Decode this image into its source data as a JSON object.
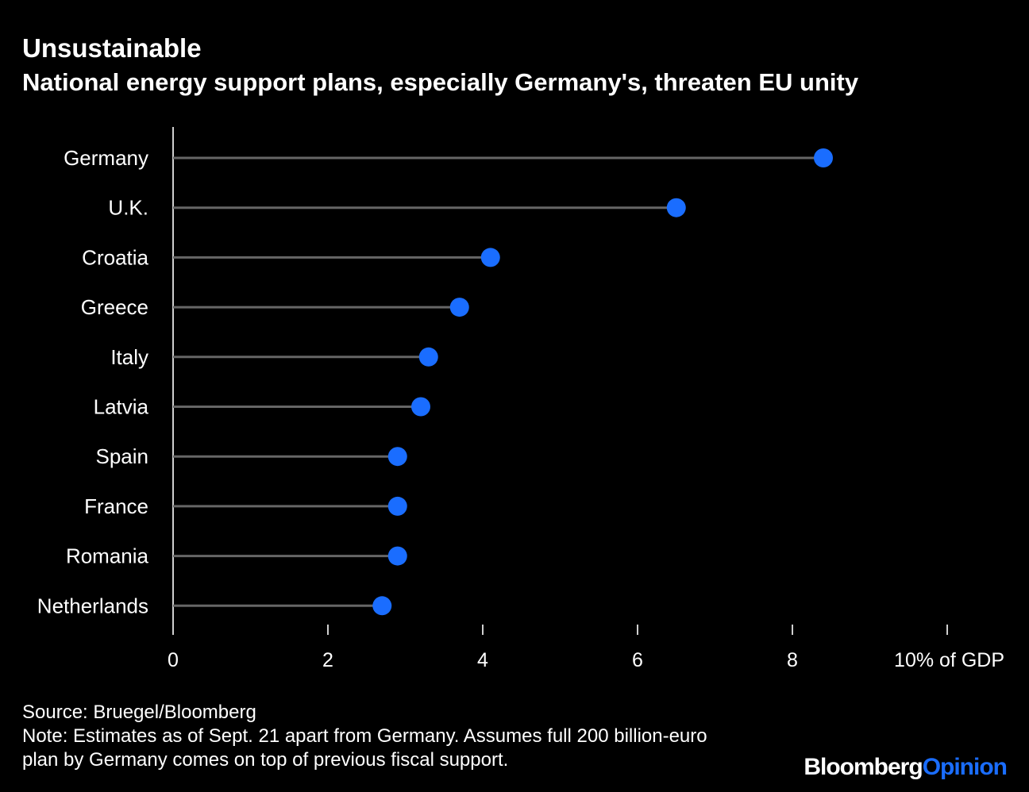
{
  "header": {
    "title": "Unsustainable",
    "subtitle": "National energy support plans, especially Germany's, threaten EU unity"
  },
  "chart_data": {
    "type": "scatter",
    "style": "dot-plot",
    "title": "Unsustainable",
    "subtitle": "National energy support plans, especially Germany's, threaten EU unity",
    "categories": [
      "Germany",
      "U.K.",
      "Croatia",
      "Greece",
      "Italy",
      "Latvia",
      "Spain",
      "France",
      "Romania",
      "Netherlands"
    ],
    "values": [
      8.4,
      6.5,
      4.1,
      3.7,
      3.3,
      3.2,
      2.9,
      2.9,
      2.9,
      2.7
    ],
    "xlim": [
      0,
      10
    ],
    "xticks": [
      0,
      2,
      4,
      6,
      8,
      10
    ],
    "xtick_labels": [
      "0",
      "2",
      "4",
      "6",
      "8",
      "10% of GDP"
    ],
    "xlabel": "",
    "ylabel": "",
    "grid": false,
    "colors": {
      "dot": "#1a6dff",
      "stem": "#666666",
      "axis": "#cfcfcf",
      "background": "#000000"
    }
  },
  "footer": {
    "source": "Source: Bruegel/Bloomberg",
    "note_line1": "Note: Estimates as of Sept. 21 apart from Germany. Assumes full 200 billion-euro",
    "note_line2": "plan by Germany comes on top of previous fiscal support."
  },
  "logo": {
    "part1": "Bloomberg",
    "part2": "Opinion"
  }
}
